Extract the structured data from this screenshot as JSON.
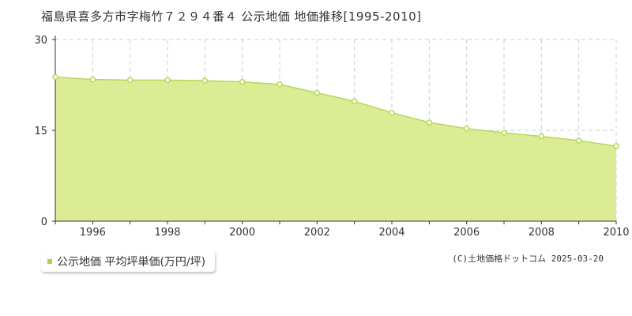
{
  "title": "福島県喜多方市字梅竹７２９４番４ 公示地価 地価推移[1995-2010]",
  "legend_label": "公示地価 平均坪単価(万円/坪)",
  "copyright": "(C)土地価格ドットコム 2025-03-20",
  "colors": {
    "fill": "#dcec95",
    "line": "#b5d85a",
    "point_stroke": "#b5d85a",
    "legend_swatch": "#a8d24a"
  },
  "chart_data": {
    "type": "area",
    "title": "福島県喜多方市字梅竹７２９４番４ 公示地価 地価推移[1995-2010]",
    "x": [
      1995,
      1996,
      1997,
      1998,
      1999,
      2000,
      2001,
      2002,
      2003,
      2004,
      2005,
      2006,
      2007,
      2008,
      2009,
      2010
    ],
    "series": [
      {
        "name": "公示地価 平均坪単価(万円/坪)",
        "values": [
          23.8,
          23.4,
          23.3,
          23.3,
          23.2,
          23.0,
          22.6,
          21.2,
          19.8,
          17.9,
          16.3,
          15.3,
          14.6,
          14.0,
          13.3,
          12.4
        ]
      }
    ],
    "xlim": [
      1995,
      2010
    ],
    "ylim": [
      0,
      30
    ],
    "x_tick_labels": [
      "1996",
      "1998",
      "2000",
      "2002",
      "2004",
      "2006",
      "2008",
      "2010"
    ],
    "y_tick_labels": [
      "0",
      "15",
      "30"
    ],
    "grid": true,
    "legend_position": "bottom-left"
  }
}
